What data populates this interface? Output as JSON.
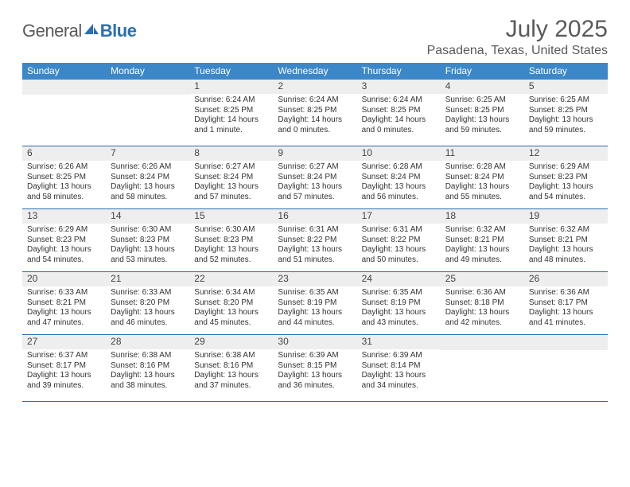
{
  "brand": {
    "part1": "General",
    "part2": "Blue"
  },
  "title": "July 2025",
  "location": "Pasadena, Texas, United States",
  "colors": {
    "header_bg": "#3c87c8",
    "rule": "#2b6fb0",
    "daynum_bg": "#eeeeee",
    "text": "#333333",
    "brand_gray": "#5a5a5a",
    "brand_blue": "#2b6fb0"
  },
  "day_names": [
    "Sunday",
    "Monday",
    "Tuesday",
    "Wednesday",
    "Thursday",
    "Friday",
    "Saturday"
  ],
  "weeks": [
    [
      {
        "num": "",
        "sunrise": "",
        "sunset": "",
        "daylight": ""
      },
      {
        "num": "",
        "sunrise": "",
        "sunset": "",
        "daylight": ""
      },
      {
        "num": "1",
        "sunrise": "Sunrise: 6:24 AM",
        "sunset": "Sunset: 8:25 PM",
        "daylight": "Daylight: 14 hours and 1 minute."
      },
      {
        "num": "2",
        "sunrise": "Sunrise: 6:24 AM",
        "sunset": "Sunset: 8:25 PM",
        "daylight": "Daylight: 14 hours and 0 minutes."
      },
      {
        "num": "3",
        "sunrise": "Sunrise: 6:24 AM",
        "sunset": "Sunset: 8:25 PM",
        "daylight": "Daylight: 14 hours and 0 minutes."
      },
      {
        "num": "4",
        "sunrise": "Sunrise: 6:25 AM",
        "sunset": "Sunset: 8:25 PM",
        "daylight": "Daylight: 13 hours and 59 minutes."
      },
      {
        "num": "5",
        "sunrise": "Sunrise: 6:25 AM",
        "sunset": "Sunset: 8:25 PM",
        "daylight": "Daylight: 13 hours and 59 minutes."
      }
    ],
    [
      {
        "num": "6",
        "sunrise": "Sunrise: 6:26 AM",
        "sunset": "Sunset: 8:25 PM",
        "daylight": "Daylight: 13 hours and 58 minutes."
      },
      {
        "num": "7",
        "sunrise": "Sunrise: 6:26 AM",
        "sunset": "Sunset: 8:24 PM",
        "daylight": "Daylight: 13 hours and 58 minutes."
      },
      {
        "num": "8",
        "sunrise": "Sunrise: 6:27 AM",
        "sunset": "Sunset: 8:24 PM",
        "daylight": "Daylight: 13 hours and 57 minutes."
      },
      {
        "num": "9",
        "sunrise": "Sunrise: 6:27 AM",
        "sunset": "Sunset: 8:24 PM",
        "daylight": "Daylight: 13 hours and 57 minutes."
      },
      {
        "num": "10",
        "sunrise": "Sunrise: 6:28 AM",
        "sunset": "Sunset: 8:24 PM",
        "daylight": "Daylight: 13 hours and 56 minutes."
      },
      {
        "num": "11",
        "sunrise": "Sunrise: 6:28 AM",
        "sunset": "Sunset: 8:24 PM",
        "daylight": "Daylight: 13 hours and 55 minutes."
      },
      {
        "num": "12",
        "sunrise": "Sunrise: 6:29 AM",
        "sunset": "Sunset: 8:23 PM",
        "daylight": "Daylight: 13 hours and 54 minutes."
      }
    ],
    [
      {
        "num": "13",
        "sunrise": "Sunrise: 6:29 AM",
        "sunset": "Sunset: 8:23 PM",
        "daylight": "Daylight: 13 hours and 54 minutes."
      },
      {
        "num": "14",
        "sunrise": "Sunrise: 6:30 AM",
        "sunset": "Sunset: 8:23 PM",
        "daylight": "Daylight: 13 hours and 53 minutes."
      },
      {
        "num": "15",
        "sunrise": "Sunrise: 6:30 AM",
        "sunset": "Sunset: 8:23 PM",
        "daylight": "Daylight: 13 hours and 52 minutes."
      },
      {
        "num": "16",
        "sunrise": "Sunrise: 6:31 AM",
        "sunset": "Sunset: 8:22 PM",
        "daylight": "Daylight: 13 hours and 51 minutes."
      },
      {
        "num": "17",
        "sunrise": "Sunrise: 6:31 AM",
        "sunset": "Sunset: 8:22 PM",
        "daylight": "Daylight: 13 hours and 50 minutes."
      },
      {
        "num": "18",
        "sunrise": "Sunrise: 6:32 AM",
        "sunset": "Sunset: 8:21 PM",
        "daylight": "Daylight: 13 hours and 49 minutes."
      },
      {
        "num": "19",
        "sunrise": "Sunrise: 6:32 AM",
        "sunset": "Sunset: 8:21 PM",
        "daylight": "Daylight: 13 hours and 48 minutes."
      }
    ],
    [
      {
        "num": "20",
        "sunrise": "Sunrise: 6:33 AM",
        "sunset": "Sunset: 8:21 PM",
        "daylight": "Daylight: 13 hours and 47 minutes."
      },
      {
        "num": "21",
        "sunrise": "Sunrise: 6:33 AM",
        "sunset": "Sunset: 8:20 PM",
        "daylight": "Daylight: 13 hours and 46 minutes."
      },
      {
        "num": "22",
        "sunrise": "Sunrise: 6:34 AM",
        "sunset": "Sunset: 8:20 PM",
        "daylight": "Daylight: 13 hours and 45 minutes."
      },
      {
        "num": "23",
        "sunrise": "Sunrise: 6:35 AM",
        "sunset": "Sunset: 8:19 PM",
        "daylight": "Daylight: 13 hours and 44 minutes."
      },
      {
        "num": "24",
        "sunrise": "Sunrise: 6:35 AM",
        "sunset": "Sunset: 8:19 PM",
        "daylight": "Daylight: 13 hours and 43 minutes."
      },
      {
        "num": "25",
        "sunrise": "Sunrise: 6:36 AM",
        "sunset": "Sunset: 8:18 PM",
        "daylight": "Daylight: 13 hours and 42 minutes."
      },
      {
        "num": "26",
        "sunrise": "Sunrise: 6:36 AM",
        "sunset": "Sunset: 8:17 PM",
        "daylight": "Daylight: 13 hours and 41 minutes."
      }
    ],
    [
      {
        "num": "27",
        "sunrise": "Sunrise: 6:37 AM",
        "sunset": "Sunset: 8:17 PM",
        "daylight": "Daylight: 13 hours and 39 minutes."
      },
      {
        "num": "28",
        "sunrise": "Sunrise: 6:38 AM",
        "sunset": "Sunset: 8:16 PM",
        "daylight": "Daylight: 13 hours and 38 minutes."
      },
      {
        "num": "29",
        "sunrise": "Sunrise: 6:38 AM",
        "sunset": "Sunset: 8:16 PM",
        "daylight": "Daylight: 13 hours and 37 minutes."
      },
      {
        "num": "30",
        "sunrise": "Sunrise: 6:39 AM",
        "sunset": "Sunset: 8:15 PM",
        "daylight": "Daylight: 13 hours and 36 minutes."
      },
      {
        "num": "31",
        "sunrise": "Sunrise: 6:39 AM",
        "sunset": "Sunset: 8:14 PM",
        "daylight": "Daylight: 13 hours and 34 minutes."
      },
      {
        "num": "",
        "sunrise": "",
        "sunset": "",
        "daylight": ""
      },
      {
        "num": "",
        "sunrise": "",
        "sunset": "",
        "daylight": ""
      }
    ]
  ]
}
